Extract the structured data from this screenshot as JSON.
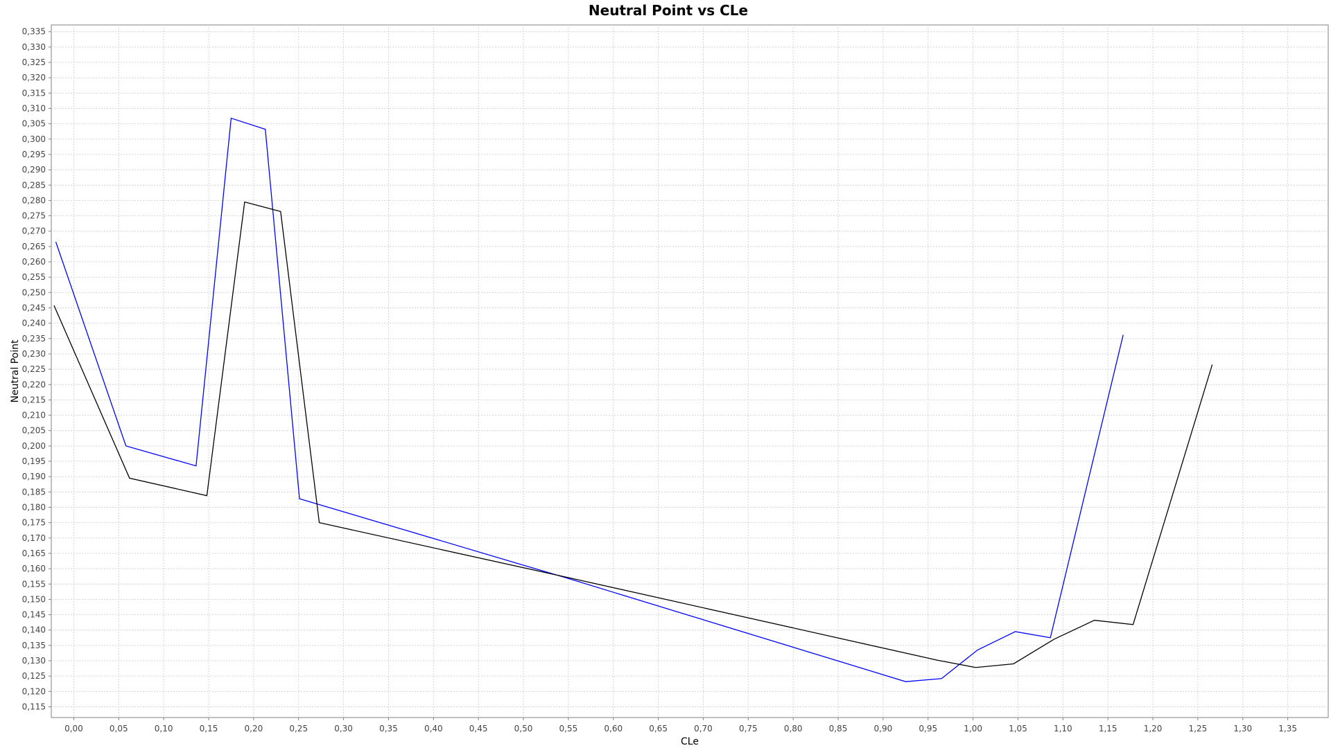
{
  "chart_data": {
    "type": "line",
    "title": "Neutral Point vs CLe",
    "xlabel": "CLe",
    "ylabel": "Neutral Point",
    "xlim": [
      -0.025,
      1.395
    ],
    "ylim": [
      0.1115,
      0.3372
    ],
    "x_ticks": [
      "0,00",
      "0,05",
      "0,10",
      "0,15",
      "0,20",
      "0,25",
      "0,30",
      "0,35",
      "0,40",
      "0,45",
      "0,50",
      "0,55",
      "0,60",
      "0,65",
      "0,70",
      "0,75",
      "0,80",
      "0,85",
      "0,90",
      "0,95",
      "1,00",
      "1,05",
      "1,10",
      "1,15",
      "1,20",
      "1,25",
      "1,30",
      "1,35"
    ],
    "y_ticks": [
      "0,115",
      "0,120",
      "0,125",
      "0,130",
      "0,135",
      "0,140",
      "0,145",
      "0,150",
      "0,155",
      "0,160",
      "0,165",
      "0,170",
      "0,175",
      "0,180",
      "0,185",
      "0,190",
      "0,195",
      "0,200",
      "0,205",
      "0,210",
      "0,215",
      "0,220",
      "0,225",
      "0,230",
      "0,235",
      "0,240",
      "0,245",
      "0,250",
      "0,255",
      "0,260",
      "0,265",
      "0,270",
      "0,275",
      "0,280",
      "0,285",
      "0,290",
      "0,295",
      "0,300",
      "0,305",
      "0,310",
      "0,315",
      "0,320",
      "0,325",
      "0,330",
      "0,335"
    ],
    "grid": true,
    "legend": "none",
    "series": [
      {
        "color": "#0000ff",
        "points": [
          [
            -0.02,
            0.2665
          ],
          [
            0.058,
            0.2
          ],
          [
            0.136,
            0.1935
          ],
          [
            0.175,
            0.3068
          ],
          [
            0.213,
            0.3032
          ],
          [
            0.251,
            0.1828
          ],
          [
            0.55,
            0.1568
          ],
          [
            0.925,
            0.1232
          ],
          [
            0.965,
            0.1242
          ],
          [
            1.005,
            0.1335
          ],
          [
            1.047,
            0.1395
          ],
          [
            1.086,
            0.1375
          ],
          [
            1.167,
            0.2362
          ]
        ]
      },
      {
        "color": "#000000",
        "points": [
          [
            -0.022,
            0.2458
          ],
          [
            0.062,
            0.1895
          ],
          [
            0.148,
            0.1838
          ],
          [
            0.19,
            0.2795
          ],
          [
            0.23,
            0.2764
          ],
          [
            0.273,
            0.175
          ],
          [
            0.55,
            0.1571
          ],
          [
            0.96,
            0.1302
          ],
          [
            1.003,
            0.1278
          ],
          [
            1.045,
            0.129
          ],
          [
            1.09,
            0.137
          ],
          [
            1.135,
            0.1432
          ],
          [
            1.178,
            0.1418
          ],
          [
            1.266,
            0.2265
          ]
        ]
      }
    ]
  }
}
